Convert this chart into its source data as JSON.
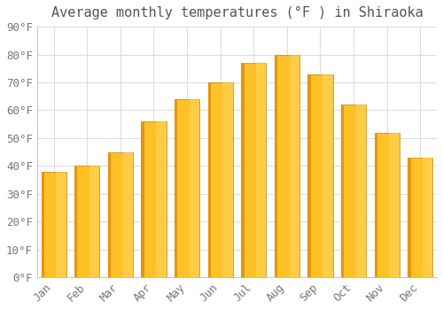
{
  "title": "Average monthly temperatures (°F ) in Shiraoka",
  "months": [
    "Jan",
    "Feb",
    "Mar",
    "Apr",
    "May",
    "Jun",
    "Jul",
    "Aug",
    "Sep",
    "Oct",
    "Nov",
    "Dec"
  ],
  "values": [
    38,
    40,
    45,
    56,
    64,
    70,
    77,
    80,
    73,
    62,
    52,
    43
  ],
  "bar_color_main": "#FFC125",
  "bar_color_light": "#FFD966",
  "bar_color_dark": "#E8940A",
  "bar_edge_color": "#B8860B",
  "ylim": [
    0,
    90
  ],
  "yticks": [
    0,
    10,
    20,
    30,
    40,
    50,
    60,
    70,
    80,
    90
  ],
  "background_color": "#FFFFFF",
  "grid_color": "#dddddd",
  "title_fontsize": 11,
  "tick_fontsize": 9,
  "title_color": "#555555"
}
